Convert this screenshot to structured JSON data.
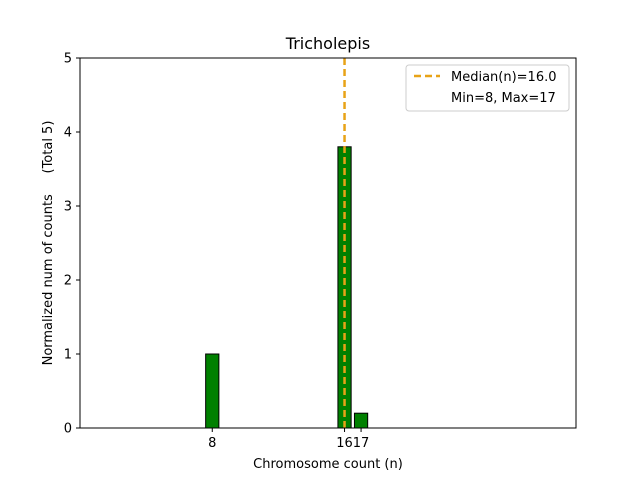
{
  "chart_data": {
    "type": "bar",
    "title": "Tricholepis",
    "xlabel": "Chromosome count (n)",
    "ylabel": "Normalized num of counts     (Total 5)",
    "xlim": [
      0,
      30
    ],
    "ylim": [
      0,
      5
    ],
    "x_ticks": [
      8,
      16,
      17
    ],
    "x_tick_labels": [
      "8",
      "16",
      "17"
    ],
    "y_ticks": [
      0,
      1,
      2,
      3,
      4,
      5
    ],
    "y_tick_labels": [
      "0",
      "1",
      "2",
      "3",
      "4",
      "5"
    ],
    "bar_width": 0.8,
    "bars": [
      {
        "x": 8,
        "value": 1.0
      },
      {
        "x": 16,
        "value": 3.8
      },
      {
        "x": 17,
        "value": 0.2
      }
    ],
    "median_line": {
      "x": 16.0
    },
    "legend": {
      "placement": "top-right",
      "entries": [
        "Median(n)=16.0",
        "Min=8, Max=17"
      ]
    },
    "colors": {
      "bar_fill": "#008000",
      "bar_edge": "#000000",
      "median": "#e8a317"
    },
    "grid": false
  }
}
